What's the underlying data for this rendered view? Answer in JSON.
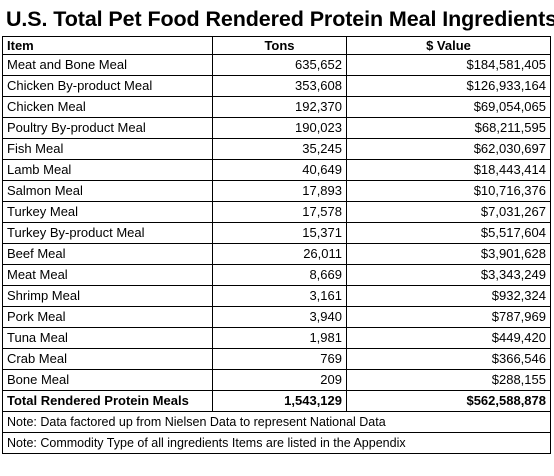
{
  "title": "U.S. Total Pet Food Rendered Protein Meal Ingredients",
  "headers": {
    "item": "Item",
    "tons": "Tons",
    "value": "$ Value"
  },
  "rows": [
    {
      "item": "Meat and Bone Meal",
      "tons": "635,652",
      "value": "$184,581,405"
    },
    {
      "item": "Chicken By-product Meal",
      "tons": "353,608",
      "value": "$126,933,164"
    },
    {
      "item": "Chicken Meal",
      "tons": "192,370",
      "value": "$69,054,065"
    },
    {
      "item": "Poultry By-product Meal",
      "tons": "190,023",
      "value": "$68,211,595"
    },
    {
      "item": "Fish Meal",
      "tons": "35,245",
      "value": "$62,030,697"
    },
    {
      "item": "Lamb Meal",
      "tons": "40,649",
      "value": "$18,443,414"
    },
    {
      "item": "Salmon Meal",
      "tons": "17,893",
      "value": "$10,716,376"
    },
    {
      "item": "Turkey Meal",
      "tons": "17,578",
      "value": "$7,031,267"
    },
    {
      "item": "Turkey By-product Meal",
      "tons": "15,371",
      "value": "$5,517,604"
    },
    {
      "item": "Beef Meal",
      "tons": "26,011",
      "value": "$3,901,628"
    },
    {
      "item": "Meat Meal",
      "tons": "8,669",
      "value": "$3,343,249"
    },
    {
      "item": "Shrimp Meal",
      "tons": "3,161",
      "value": "$932,324"
    },
    {
      "item": "Pork Meal",
      "tons": "3,940",
      "value": "$787,969"
    },
    {
      "item": "Tuna Meal",
      "tons": "1,981",
      "value": "$449,420"
    },
    {
      "item": "Crab Meal",
      "tons": "769",
      "value": "$366,546"
    },
    {
      "item": "Bone Meal",
      "tons": "209",
      "value": "$288,155"
    }
  ],
  "total": {
    "item": "Total Rendered Protein Meals",
    "tons": "1,543,129",
    "value": "$562,588,878"
  },
  "notes": [
    "Note: Data factored up from Nielsen Data to represent National Data",
    "Note: Commodity Type of all ingredients Items are listed in the Appendix"
  ]
}
